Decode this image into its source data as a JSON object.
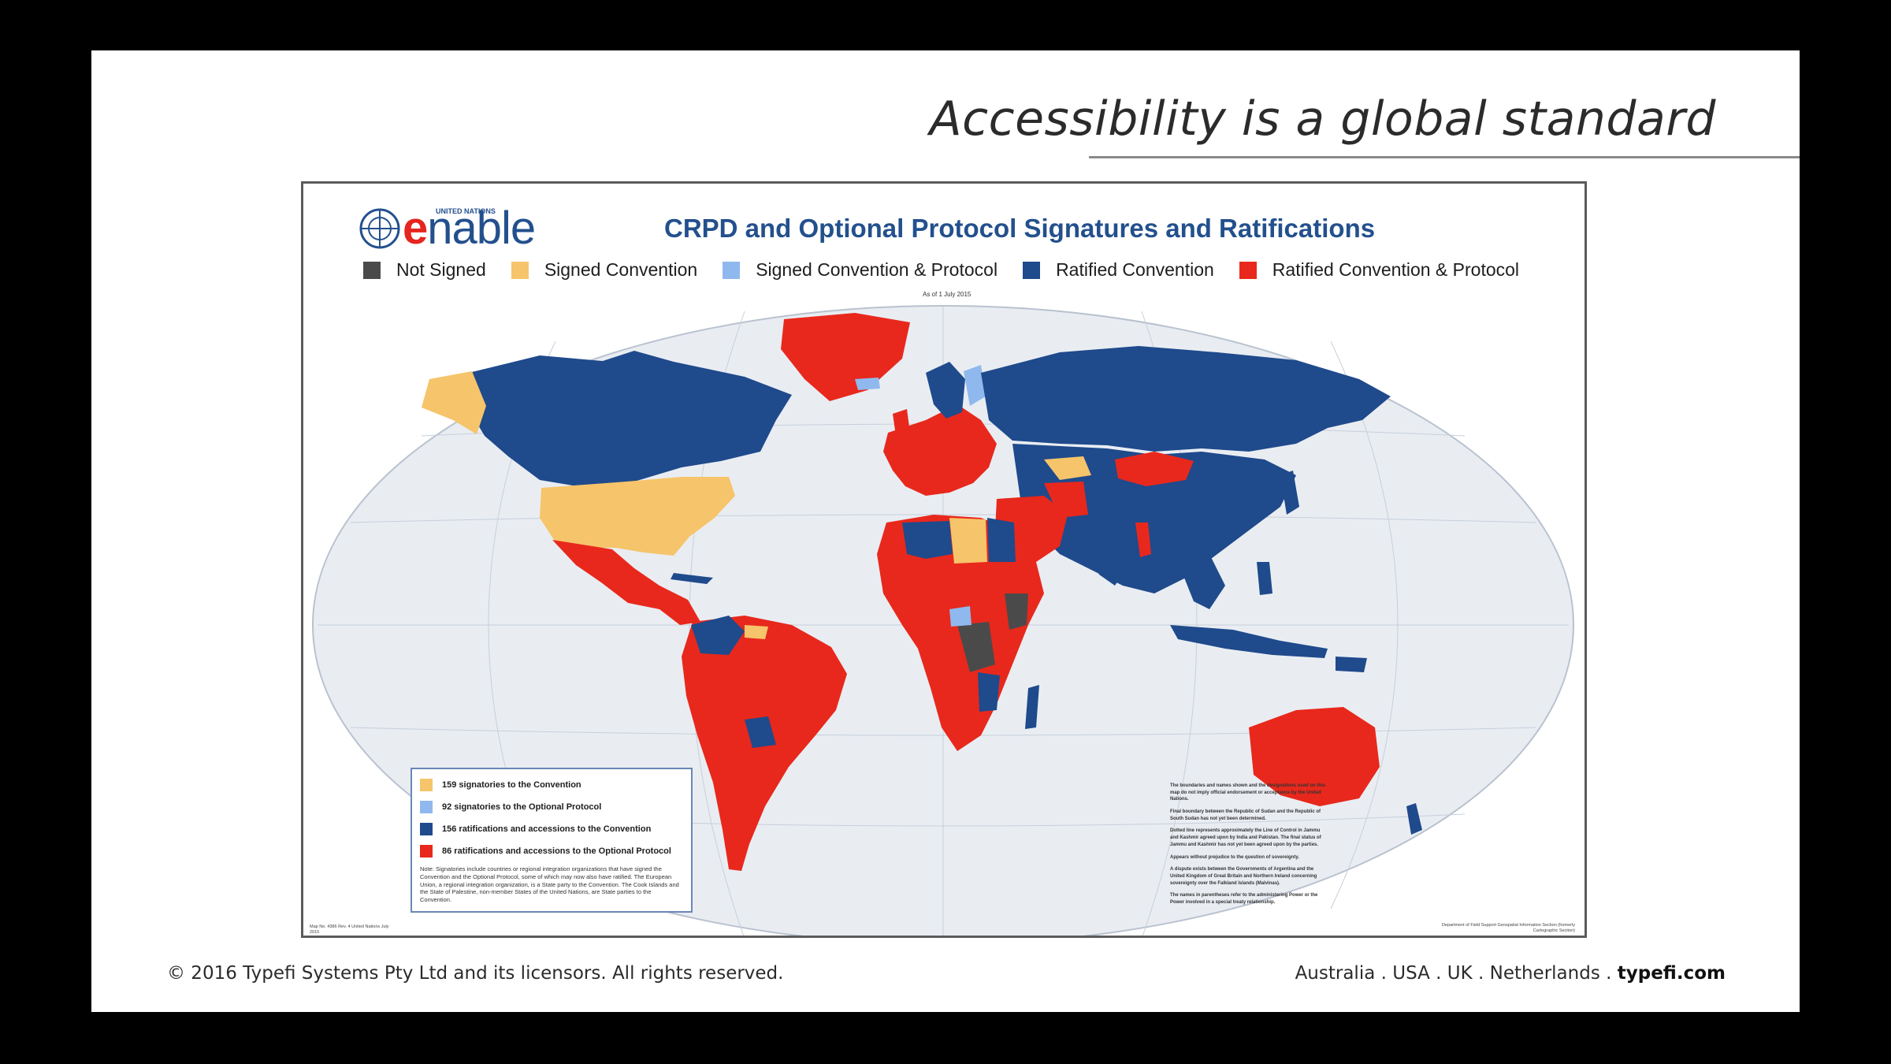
{
  "slide": {
    "title": "Accessibility is a global standard",
    "footer_copyright": "© 2016 Typefi Systems Pty Ltd and its licensors. All rights reserved.",
    "footer_locations": "Australia . USA . UK . Netherlands . ",
    "footer_site": "typefi.com"
  },
  "map": {
    "logo_superscript": "UNITED NATIONS",
    "logo_text_e": "e",
    "logo_text_rest": "nable",
    "heading": "CRPD and Optional Protocol  Signatures and Ratifications",
    "as_of": "As of 1 July 2015",
    "legend": [
      {
        "label": "Not Signed",
        "color": "#4a4a4a"
      },
      {
        "label": "Signed Convention",
        "color": "#f6c46a"
      },
      {
        "label": "Signed Convention & Protocol",
        "color": "#8fb8ee"
      },
      {
        "label": "Ratified Convention",
        "color": "#1f4a8c"
      },
      {
        "label": "Ratified Convention & Protocol",
        "color": "#e8281c"
      }
    ],
    "stats": [
      {
        "label": "159 signatories to the Convention",
        "color": "#f6c46a"
      },
      {
        "label": "92 signatories to the Optional Protocol",
        "color": "#8fb8ee"
      },
      {
        "label": "156 ratifications and accessions to the Convention",
        "color": "#1f4a8c"
      },
      {
        "label": "86 ratifications and accessions to the Optional Protocol",
        "color": "#e8281c"
      }
    ],
    "stats_note": "Note: Signatories include countries or regional integration organizations that have signed the Convention and the Optional Protocol, some of which may now also have ratified. The European Union, a regional integration organization, is a State party to the Convention. The Cook Islands and the State of Palestine, non-member States of the United Nations, are State parties to the Convention.",
    "map_notes": [
      "The boundaries and names shown and the designations used on this map do not imply official endorsement or acceptance by the United Nations.",
      "Final boundary between the Republic of Sudan and the Republic of South Sudan has not yet been determined.",
      "Dotted line represents approximately the Line of Control in Jammu and Kashmir agreed upon by India and Pakistan. The final status of Jammu and Kashmir has not yet been agreed upon by the parties.",
      "Appears without prejudice to the question of sovereignty.",
      "A dispute exists between the Governments of Argentina and the United Kingdom of Great Britain and Northern Ireland concerning sovereignty over the Falkland Islands (Malvinas).",
      "The names in parentheses refer to the administering Power or the Power involved in a special treaty relationship."
    ],
    "map_number": "Map No. 4386 Rev. 4   United Nations\nJuly 2015",
    "department": "Department of Field Support\nGeospatial Information Section (formerly Cartographic Section)"
  }
}
